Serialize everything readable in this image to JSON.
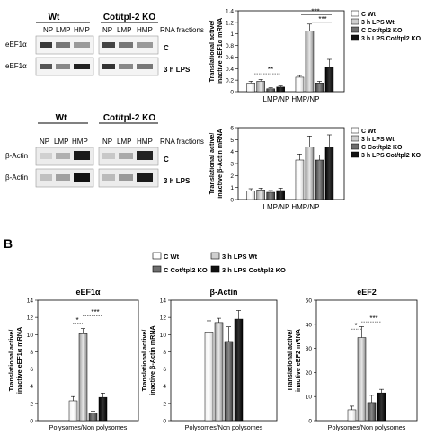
{
  "panel_a": {
    "blot_top": {
      "wt_label": "Wt",
      "ko_label": "Cot/tpl-2 KO",
      "lanes": [
        "NP",
        "LMP",
        "HMP"
      ],
      "fractions_label": "RNA fractions",
      "row_labels": [
        "eEF1α",
        "eEF1α"
      ],
      "row_conditions": [
        "C",
        "3 h LPS"
      ]
    },
    "blot_bottom": {
      "wt_label": "Wt",
      "ko_label": "Cot/tpl-2 KO",
      "lanes": [
        "NP",
        "LMP",
        "HMP"
      ],
      "fractions_label": "RNA fractions",
      "row_labels": [
        "β-Actin",
        "β-Actin"
      ],
      "row_conditions": [
        "C",
        "3 h LPS"
      ]
    }
  },
  "panel_b": {
    "letter": "B",
    "legend": {
      "c_wt": "C Wt",
      "lps_wt": "3 h LPS Wt",
      "c_ko": "C Cot/tpl2 KO",
      "lps_ko": "3 h LPS Cot/tpl2 KO"
    }
  },
  "colors": {
    "c_wt": "#ffffff",
    "lps_wt": "#cfcfcf",
    "c_ko": "#6e6e6e",
    "lps_ko": "#111111"
  },
  "chart_data": [
    {
      "type": "bar",
      "id": "a-eef1a",
      "ylabel": [
        "Translational active/",
        "inactive eEF1α mRNA"
      ],
      "categories": [
        "LMP/NP",
        "HMP/NP"
      ],
      "ylim": [
        0,
        1.4
      ],
      "yticks": [
        "0",
        "0.2",
        "0.4",
        "0.6",
        "0.8",
        "1",
        "1.2",
        "1.4"
      ],
      "legend": [
        "C Wt",
        "3 h LPS Wt",
        "C Cot/tpl2 KO",
        "3 h LPS Cot/tpl2 KO"
      ],
      "series": [
        {
          "name": "C Wt",
          "values": [
            0.15,
            0.25
          ],
          "err": [
            0.03,
            0.03
          ]
        },
        {
          "name": "3 h LPS Wt",
          "values": [
            0.18,
            1.05
          ],
          "err": [
            0.03,
            0.12
          ]
        },
        {
          "name": "C Cot/tpl2 KO",
          "values": [
            0.05,
            0.15
          ],
          "err": [
            0.02,
            0.03
          ]
        },
        {
          "name": "3 h LPS Cot/tpl2 KO",
          "values": [
            0.08,
            0.42
          ],
          "err": [
            0.02,
            0.14
          ]
        }
      ],
      "annotations": [
        "**",
        "***",
        "***"
      ]
    },
    {
      "type": "bar",
      "id": "a-actin",
      "ylabel": [
        "Translational active/",
        "inactive β-Actin mRNA"
      ],
      "categories": [
        "LMP/NP",
        "HMP/NP"
      ],
      "ylim": [
        0,
        6
      ],
      "yticks": [
        "0",
        "1",
        "2",
        "3",
        "4",
        "5",
        "6"
      ],
      "legend": [
        "C Wt",
        "3 h LPS Wt",
        "C Cot/tpl2 KO",
        "3 h LPS Cot/tpl2 KO"
      ],
      "series": [
        {
          "name": "C Wt",
          "values": [
            0.7,
            3.3
          ],
          "err": [
            0.2,
            0.5
          ]
        },
        {
          "name": "3 h LPS Wt",
          "values": [
            0.8,
            4.4
          ],
          "err": [
            0.15,
            0.9
          ]
        },
        {
          "name": "C Cot/tpl2 KO",
          "values": [
            0.6,
            3.3
          ],
          "err": [
            0.15,
            0.4
          ]
        },
        {
          "name": "3 h LPS Cot/tpl2 KO",
          "values": [
            0.75,
            4.4
          ],
          "err": [
            0.2,
            1.0
          ]
        }
      ]
    },
    {
      "type": "bar",
      "id": "b-eef1a",
      "title": "eEF1α",
      "ylabel": [
        "Translational active/",
        "inactive eEF1α mRNA"
      ],
      "xlabel": "Polysomes/Non polysomes",
      "ylim": [
        0,
        14
      ],
      "yticks": [
        "0",
        "2",
        "4",
        "6",
        "8",
        "10",
        "12",
        "14"
      ],
      "values": [
        2.3,
        10.1,
        0.9,
        2.7
      ],
      "err": [
        0.5,
        0.6,
        0.2,
        0.5
      ],
      "annotations": [
        "*",
        "***"
      ]
    },
    {
      "type": "bar",
      "id": "b-actin",
      "title": "β-Actin",
      "ylabel": [
        "Translational active/",
        "inactive β-Actin mRNA"
      ],
      "xlabel": "Polysomes/Non polysomes",
      "ylim": [
        0,
        14
      ],
      "yticks": [
        "0",
        "2",
        "4",
        "6",
        "8",
        "10",
        "12",
        "14"
      ],
      "values": [
        10.3,
        11.4,
        9.2,
        11.8
      ],
      "err": [
        1.3,
        0.5,
        1.7,
        1.0
      ]
    },
    {
      "type": "bar",
      "id": "b-eef2",
      "title": "eEF2",
      "ylabel": [
        "Translational active/",
        "inactive eEF2 mRNA"
      ],
      "xlabel": "Polysomes/Non polysomes",
      "ylim": [
        0,
        50
      ],
      "yticks": [
        "0",
        "10",
        "20",
        "30",
        "40",
        "50"
      ],
      "values": [
        4.5,
        34.5,
        7.5,
        11.5
      ],
      "err": [
        1.5,
        4.5,
        3.0,
        1.5
      ],
      "annotations": [
        "*",
        "***"
      ]
    }
  ]
}
